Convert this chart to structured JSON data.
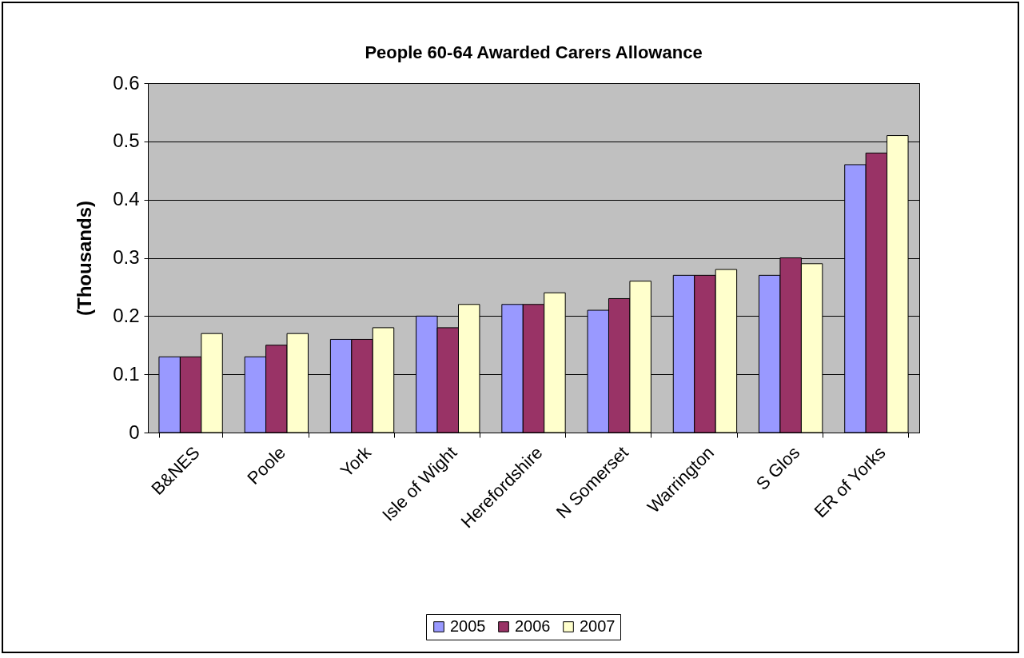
{
  "chart_data": {
    "type": "bar",
    "title": "People 60-64 Awarded Carers Allowance",
    "ylabel": "(Thousands)",
    "categories": [
      "B&NES",
      "Poole",
      "York",
      "Isle of Wight",
      "Herefordshire",
      "N Somerset",
      "Warrington",
      "S Glos",
      "ER of Yorks"
    ],
    "series": [
      {
        "name": "2005",
        "color": "#9999ff",
        "values": [
          0.13,
          0.13,
          0.16,
          0.2,
          0.22,
          0.21,
          0.27,
          0.27,
          0.46
        ]
      },
      {
        "name": "2006",
        "color": "#993366",
        "values": [
          0.13,
          0.15,
          0.16,
          0.18,
          0.22,
          0.23,
          0.27,
          0.3,
          0.48
        ]
      },
      {
        "name": "2007",
        "color": "#ffffcc",
        "values": [
          0.17,
          0.17,
          0.18,
          0.22,
          0.24,
          0.26,
          0.28,
          0.29,
          0.51
        ]
      }
    ],
    "ylim": [
      0,
      0.6
    ],
    "yticks": [
      0,
      0.1,
      0.2,
      0.3,
      0.4,
      0.5,
      0.6
    ],
    "grid": "y",
    "legend": "bottom"
  }
}
